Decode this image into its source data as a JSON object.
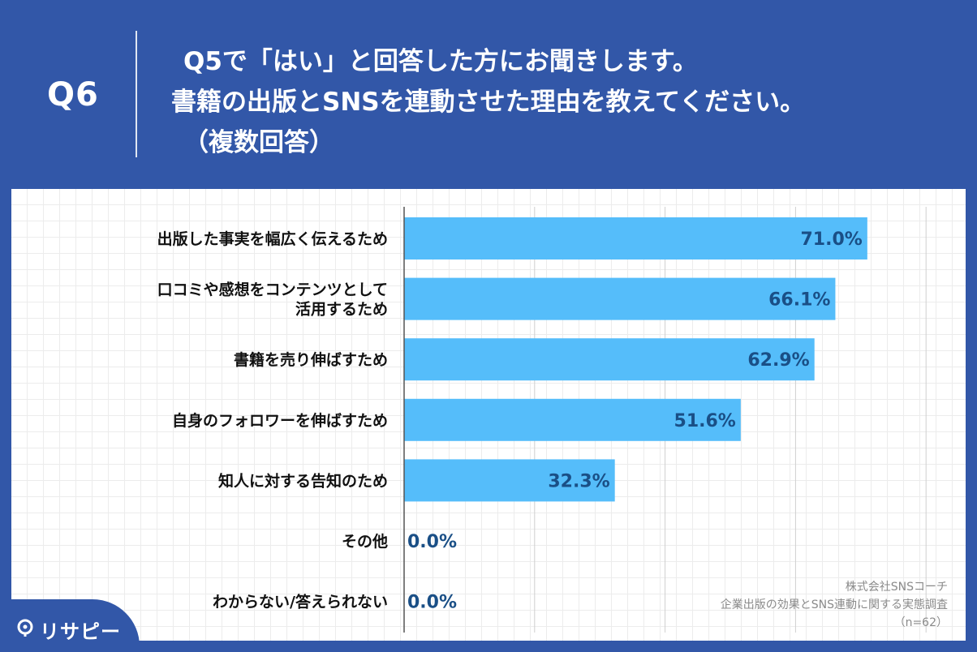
{
  "header": {
    "question_number": "Q6",
    "title_line1": "Q5で「はい」と回答した方にお聞きします。",
    "title_line2": "書籍の出版とSNSを連動させた理由を教えてください。",
    "title_line3": "（複数回答）"
  },
  "chart_data": {
    "type": "bar",
    "orientation": "horizontal",
    "categories": [
      "出版した事実を幅広く伝えるため",
      "口コミや感想をコンテンツとして活用するため",
      "書籍を売り伸ばすため",
      "自身のフォロワーを伸ばすため",
      "知人に対する告知のため",
      "その他",
      "わからない/答えられない"
    ],
    "category_lines": [
      [
        "出版した事実を幅広く伝えるため"
      ],
      [
        "口コミや感想をコンテンツとして",
        "活用するため"
      ],
      [
        "書籍を売り伸ばすため"
      ],
      [
        "自身のフォロワーを伸ばすため"
      ],
      [
        "知人に対する告知のため"
      ],
      [
        "その他"
      ],
      [
        "わからない/答えられない"
      ]
    ],
    "values": [
      71.0,
      66.1,
      62.9,
      51.6,
      32.3,
      0.0,
      0.0
    ],
    "value_labels": [
      "71.0%",
      "66.1%",
      "62.9%",
      "51.6%",
      "32.3%",
      "0.0%",
      "0.0%"
    ],
    "xlim": [
      0,
      80
    ],
    "grid": true,
    "bar_color": "#55bdfa",
    "label_color": "#1a4f86"
  },
  "source": {
    "line1": "株式会社SNSコーチ",
    "line2": "企業出版の効果とSNS連動に関する実態調査",
    "line3": "（n=62）"
  },
  "logo": {
    "text": "リサピー"
  },
  "colors": {
    "background": "#3257a8",
    "bar": "#55bdfa"
  }
}
